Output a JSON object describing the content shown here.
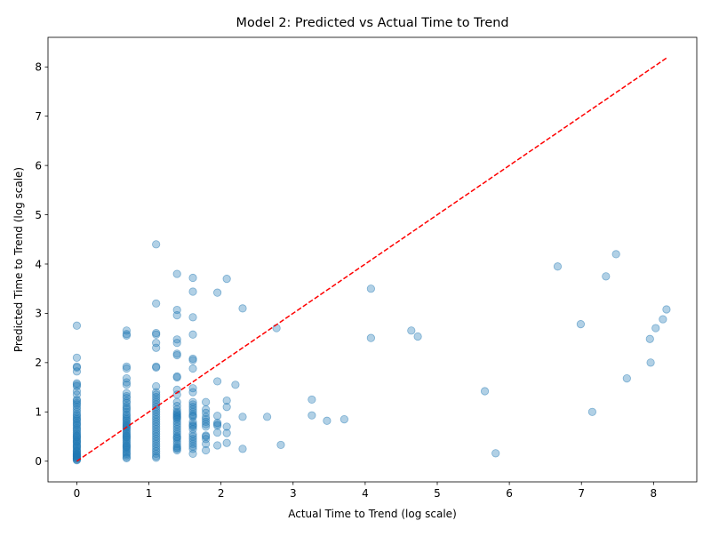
{
  "chart_data": {
    "type": "scatter",
    "title": "Model 2: Predicted vs Actual Time to Trend",
    "xlabel": "Actual Time to Trend (log scale)",
    "ylabel": "Predicted Time to Trend (log scale)",
    "xlim": [
      -0.4,
      8.6
    ],
    "ylim": [
      -0.42,
      8.6
    ],
    "xticks": [
      0,
      1,
      2,
      3,
      4,
      5,
      6,
      7,
      8
    ],
    "yticks": [
      0,
      1,
      2,
      3,
      4,
      5,
      6,
      7,
      8
    ],
    "grid": false,
    "point_color": "#1f77b4",
    "point_alpha": 0.35,
    "reference_line": {
      "style": "dashed",
      "color": "#ff0000",
      "from": [
        0,
        0
      ],
      "to": [
        8.18,
        8.18
      ]
    },
    "series": [
      {
        "x": [
          0,
          0,
          0,
          0,
          0,
          0,
          0,
          0,
          0,
          0,
          0,
          0,
          0,
          0,
          0,
          0,
          0,
          0,
          0,
          0,
          0,
          0,
          0,
          0,
          0,
          0,
          0,
          0,
          0,
          0,
          0,
          0,
          0,
          0,
          0,
          0,
          0,
          0,
          0,
          0,
          0,
          0,
          0,
          0,
          0,
          0,
          0,
          0,
          0,
          0,
          0,
          0,
          0,
          0,
          0,
          0,
          0.69,
          0.69,
          0.69,
          0.69,
          0.69,
          0.69,
          0.69,
          0.69,
          0.69,
          0.69,
          0.69,
          0.69,
          0.69,
          0.69,
          0.69,
          0.69,
          0.69,
          0.69,
          0.69,
          0.69,
          0.69,
          0.69,
          0.69,
          0.69,
          0.69,
          0.69,
          0.69,
          0.69,
          0.69,
          0.69,
          0.69,
          0.69,
          0.69,
          0.69,
          0.69,
          0.69,
          0.69,
          0.69,
          0.69,
          0.69,
          0.69,
          0.69,
          0.69,
          0.69,
          0.69,
          0.69,
          0.69,
          0.69,
          1.1,
          1.1,
          1.1,
          1.1,
          1.1,
          1.1,
          1.1,
          1.1,
          1.1,
          1.1,
          1.1,
          1.1,
          1.1,
          1.1,
          1.1,
          1.1,
          1.1,
          1.1,
          1.1,
          1.1,
          1.1,
          1.1,
          1.1,
          1.1,
          1.1,
          1.1,
          1.1,
          1.1,
          1.1,
          1.1,
          1.1,
          1.1,
          1.1,
          1.1,
          1.1,
          1.1,
          1.1,
          1.39,
          1.39,
          1.39,
          1.39,
          1.39,
          1.39,
          1.39,
          1.39,
          1.39,
          1.39,
          1.39,
          1.39,
          1.39,
          1.39,
          1.39,
          1.39,
          1.39,
          1.39,
          1.39,
          1.39,
          1.39,
          1.39,
          1.39,
          1.39,
          1.39,
          1.39,
          1.39,
          1.39,
          1.39,
          1.39,
          1.39,
          1.39,
          1.39,
          1.39,
          1.39,
          1.39,
          1.61,
          1.61,
          1.61,
          1.61,
          1.61,
          1.61,
          1.61,
          1.61,
          1.61,
          1.61,
          1.61,
          1.61,
          1.61,
          1.61,
          1.61,
          1.61,
          1.61,
          1.61,
          1.61,
          1.61,
          1.61,
          1.61,
          1.61,
          1.61,
          1.61,
          1.61,
          1.61,
          1.61,
          1.61,
          1.61,
          1.79,
          1.79,
          1.79,
          1.79,
          1.79,
          1.79,
          1.79,
          1.79,
          1.79,
          1.79,
          1.79,
          1.79,
          1.79,
          1.95,
          1.95,
          1.95,
          1.95,
          1.95,
          1.95,
          1.95,
          1.95,
          2.08,
          2.08,
          2.08,
          2.08,
          2.08,
          2.08,
          2.2,
          2.3,
          2.3,
          2.3,
          2.64,
          2.77,
          2.83,
          3.26,
          3.26,
          3.47,
          3.71,
          4.08,
          4.08,
          4.64,
          4.73,
          5.66,
          5.81,
          6.67,
          6.99,
          7.15,
          7.34,
          7.48,
          7.63,
          7.95,
          7.96,
          8.03,
          8.13,
          8.18
        ],
        "y": [
          2.75,
          2.1,
          1.92,
          1.9,
          1.82,
          1.58,
          1.55,
          1.52,
          1.42,
          1.35,
          1.25,
          1.22,
          1.18,
          1.15,
          1.1,
          1.05,
          1.0,
          0.95,
          0.92,
          0.88,
          0.85,
          0.82,
          0.78,
          0.75,
          0.72,
          0.68,
          0.65,
          0.62,
          0.58,
          0.55,
          0.52,
          0.48,
          0.45,
          0.42,
          0.38,
          0.35,
          0.32,
          0.28,
          0.25,
          0.22,
          0.2,
          0.18,
          0.15,
          0.13,
          0.11,
          0.09,
          0.07,
          0.05,
          0.03,
          0.02,
          0.06,
          0.1,
          0.14,
          0.3,
          0.4,
          0.5,
          2.65,
          2.58,
          2.55,
          1.92,
          1.88,
          1.68,
          1.6,
          1.55,
          1.38,
          1.32,
          1.28,
          1.22,
          1.18,
          1.12,
          1.08,
          1.05,
          1.0,
          0.95,
          0.92,
          0.88,
          0.85,
          0.82,
          0.78,
          0.75,
          0.72,
          0.7,
          0.68,
          0.65,
          0.62,
          0.58,
          0.55,
          0.52,
          0.5,
          0.48,
          0.45,
          0.42,
          0.38,
          0.35,
          0.32,
          0.3,
          0.28,
          0.25,
          0.22,
          0.18,
          0.15,
          0.12,
          0.08,
          0.06,
          4.4,
          3.2,
          2.6,
          2.57,
          2.4,
          2.3,
          1.92,
          1.9,
          1.52,
          1.4,
          1.35,
          1.3,
          1.25,
          1.2,
          1.15,
          1.1,
          1.05,
          1.0,
          0.95,
          0.9,
          0.85,
          0.8,
          0.75,
          0.7,
          0.65,
          0.6,
          0.55,
          0.5,
          0.45,
          0.4,
          0.35,
          0.3,
          0.25,
          0.2,
          0.15,
          0.1,
          0.07,
          3.8,
          3.07,
          2.96,
          2.47,
          2.4,
          2.18,
          2.15,
          1.72,
          1.7,
          1.45,
          1.35,
          1.2,
          1.12,
          1.05,
          1.0,
          0.97,
          0.95,
          0.92,
          0.9,
          0.88,
          0.85,
          0.8,
          0.75,
          0.7,
          0.65,
          0.6,
          0.55,
          0.5,
          0.48,
          0.45,
          0.4,
          0.35,
          0.3,
          0.27,
          0.25,
          0.22,
          3.72,
          3.44,
          2.92,
          2.57,
          2.08,
          2.05,
          1.88,
          1.48,
          1.4,
          1.2,
          1.15,
          1.1,
          1.05,
          1.0,
          0.95,
          0.92,
          0.9,
          0.8,
          0.75,
          0.72,
          0.7,
          0.65,
          0.55,
          0.5,
          0.45,
          0.4,
          0.35,
          0.3,
          0.25,
          0.15,
          1.2,
          1.05,
          0.98,
          0.9,
          0.85,
          0.8,
          0.75,
          0.7,
          0.52,
          0.5,
          0.45,
          0.35,
          0.22,
          3.42,
          1.62,
          0.92,
          0.78,
          0.75,
          0.72,
          0.58,
          0.32,
          3.7,
          1.23,
          1.1,
          0.7,
          0.57,
          0.37,
          1.55,
          3.1,
          0.9,
          0.25,
          0.9,
          2.7,
          0.33,
          1.25,
          0.93,
          0.82,
          0.85,
          3.5,
          2.5,
          2.65,
          2.53,
          1.42,
          0.16,
          3.95,
          2.78,
          1.0,
          3.75,
          4.2,
          1.68,
          2.48,
          2.0,
          2.7,
          2.88,
          3.08
        ]
      }
    ]
  }
}
